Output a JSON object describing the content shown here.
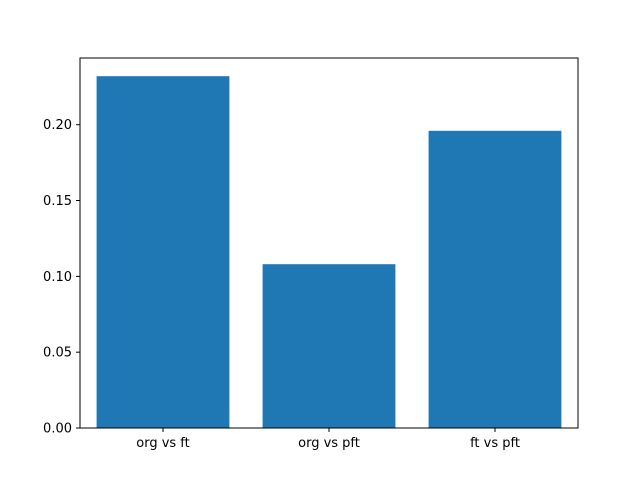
{
  "figure": {
    "background": "#ffffff",
    "bar_color": "#1f77b4",
    "axis_color": "#000000"
  },
  "chart_data": {
    "type": "bar",
    "categories": [
      "org vs ft",
      "org vs pft",
      "ft vs pft"
    ],
    "values": [
      0.232,
      0.108,
      0.196
    ],
    "title": "",
    "xlabel": "",
    "ylabel": "",
    "ylim": [
      0,
      0.244
    ],
    "yticks": [
      0.0,
      0.05,
      0.1,
      0.15,
      0.2
    ],
    "ytick_format_decimals": 2,
    "grid": false,
    "legend_position": "none",
    "bar_width_fraction": 0.8
  }
}
